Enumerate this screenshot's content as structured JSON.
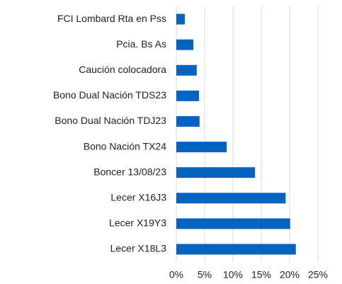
{
  "chart_data": {
    "type": "bar",
    "orientation": "horizontal",
    "categories": [
      "FCI Lombard Rta en Pss",
      "Pcia. Bs As",
      "Caución colocadora",
      "Bono Dual Nación TDS23",
      "Bono Dual Nación TDJ23",
      "Bono Nación TX24",
      "Boncer 13/08/23",
      "Lecer X16J3",
      "Lecer X19Y3",
      "Lecer X18L3"
    ],
    "values": [
      1.5,
      3.0,
      3.6,
      4.0,
      4.1,
      8.9,
      13.9,
      19.3,
      20.1,
      21.1
    ],
    "color": "#0563c1",
    "xlim": [
      0,
      25
    ],
    "xticks": [
      {
        "value": 0,
        "label": "0%"
      },
      {
        "value": 5,
        "label": "5%"
      },
      {
        "value": 10,
        "label": "10%"
      },
      {
        "value": 15,
        "label": "15%"
      },
      {
        "value": 20,
        "label": "20%"
      },
      {
        "value": 25,
        "label": "25%"
      }
    ],
    "grid": true
  }
}
